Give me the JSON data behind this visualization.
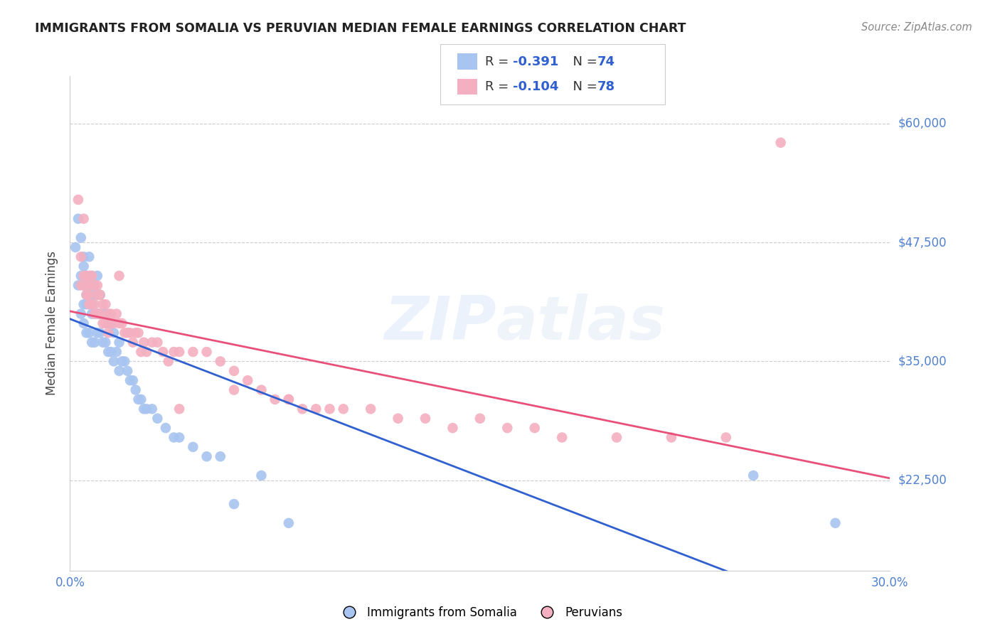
{
  "title": "IMMIGRANTS FROM SOMALIA VS PERUVIAN MEDIAN FEMALE EARNINGS CORRELATION CHART",
  "source": "Source: ZipAtlas.com",
  "ylabel": "Median Female Earnings",
  "yticks": [
    22500,
    35000,
    47500,
    60000
  ],
  "ytick_labels": [
    "$22,500",
    "$35,000",
    "$47,500",
    "$60,000"
  ],
  "xmin": 0.0,
  "xmax": 0.3,
  "ymin": 13000,
  "ymax": 65000,
  "watermark": "ZIPAtlas",
  "color_somalia": "#a8c4f0",
  "color_peruvian": "#f4afc0",
  "color_line_somalia": "#3060d0",
  "color_line_peruvian": "#e8507a",
  "color_axis_text": "#5080d0",
  "color_r_value": "#3060d0",
  "somalia_x": [
    0.002,
    0.003,
    0.003,
    0.004,
    0.004,
    0.004,
    0.005,
    0.005,
    0.005,
    0.005,
    0.005,
    0.006,
    0.006,
    0.006,
    0.006,
    0.006,
    0.007,
    0.007,
    0.007,
    0.007,
    0.007,
    0.007,
    0.008,
    0.008,
    0.008,
    0.008,
    0.008,
    0.009,
    0.009,
    0.009,
    0.009,
    0.01,
    0.01,
    0.01,
    0.01,
    0.011,
    0.011,
    0.011,
    0.012,
    0.012,
    0.013,
    0.013,
    0.014,
    0.014,
    0.015,
    0.015,
    0.016,
    0.016,
    0.017,
    0.018,
    0.018,
    0.019,
    0.02,
    0.021,
    0.022,
    0.023,
    0.024,
    0.025,
    0.026,
    0.027,
    0.028,
    0.03,
    0.032,
    0.035,
    0.038,
    0.04,
    0.045,
    0.05,
    0.055,
    0.06,
    0.07,
    0.08,
    0.25,
    0.28
  ],
  "somalia_y": [
    47000,
    50000,
    43000,
    48000,
    44000,
    40000,
    46000,
    45000,
    43000,
    41000,
    39000,
    44000,
    43000,
    42000,
    41000,
    38000,
    46000,
    44000,
    43000,
    42000,
    41000,
    38000,
    44000,
    43000,
    41000,
    40000,
    37000,
    43000,
    42000,
    40000,
    37000,
    44000,
    42000,
    40000,
    38000,
    42000,
    40000,
    38000,
    40000,
    37000,
    40000,
    37000,
    39000,
    36000,
    39000,
    36000,
    38000,
    35000,
    36000,
    37000,
    34000,
    35000,
    35000,
    34000,
    33000,
    33000,
    32000,
    31000,
    31000,
    30000,
    30000,
    30000,
    29000,
    28000,
    27000,
    27000,
    26000,
    25000,
    25000,
    20000,
    23000,
    18000,
    23000,
    18000
  ],
  "peruvian_x": [
    0.003,
    0.004,
    0.004,
    0.005,
    0.005,
    0.005,
    0.006,
    0.006,
    0.006,
    0.007,
    0.007,
    0.007,
    0.008,
    0.008,
    0.008,
    0.009,
    0.009,
    0.009,
    0.01,
    0.01,
    0.01,
    0.011,
    0.011,
    0.012,
    0.012,
    0.013,
    0.013,
    0.014,
    0.014,
    0.015,
    0.015,
    0.016,
    0.017,
    0.018,
    0.018,
    0.019,
    0.02,
    0.021,
    0.022,
    0.023,
    0.024,
    0.025,
    0.026,
    0.027,
    0.028,
    0.03,
    0.032,
    0.034,
    0.036,
    0.038,
    0.04,
    0.045,
    0.05,
    0.055,
    0.06,
    0.065,
    0.07,
    0.075,
    0.08,
    0.085,
    0.09,
    0.095,
    0.1,
    0.11,
    0.12,
    0.13,
    0.14,
    0.15,
    0.16,
    0.17,
    0.18,
    0.2,
    0.22,
    0.24,
    0.08,
    0.06,
    0.04,
    0.26
  ],
  "peruvian_y": [
    52000,
    46000,
    43000,
    50000,
    44000,
    43000,
    44000,
    43000,
    42000,
    44000,
    42000,
    41000,
    44000,
    43000,
    41000,
    43000,
    41000,
    40000,
    43000,
    42000,
    40000,
    42000,
    40000,
    41000,
    39000,
    41000,
    39000,
    40000,
    38000,
    40000,
    39000,
    39000,
    40000,
    44000,
    39000,
    39000,
    38000,
    38000,
    38000,
    37000,
    38000,
    38000,
    36000,
    37000,
    36000,
    37000,
    37000,
    36000,
    35000,
    36000,
    36000,
    36000,
    36000,
    35000,
    34000,
    33000,
    32000,
    31000,
    31000,
    30000,
    30000,
    30000,
    30000,
    30000,
    29000,
    29000,
    28000,
    29000,
    28000,
    28000,
    27000,
    27000,
    27000,
    27000,
    31000,
    32000,
    30000,
    58000
  ]
}
